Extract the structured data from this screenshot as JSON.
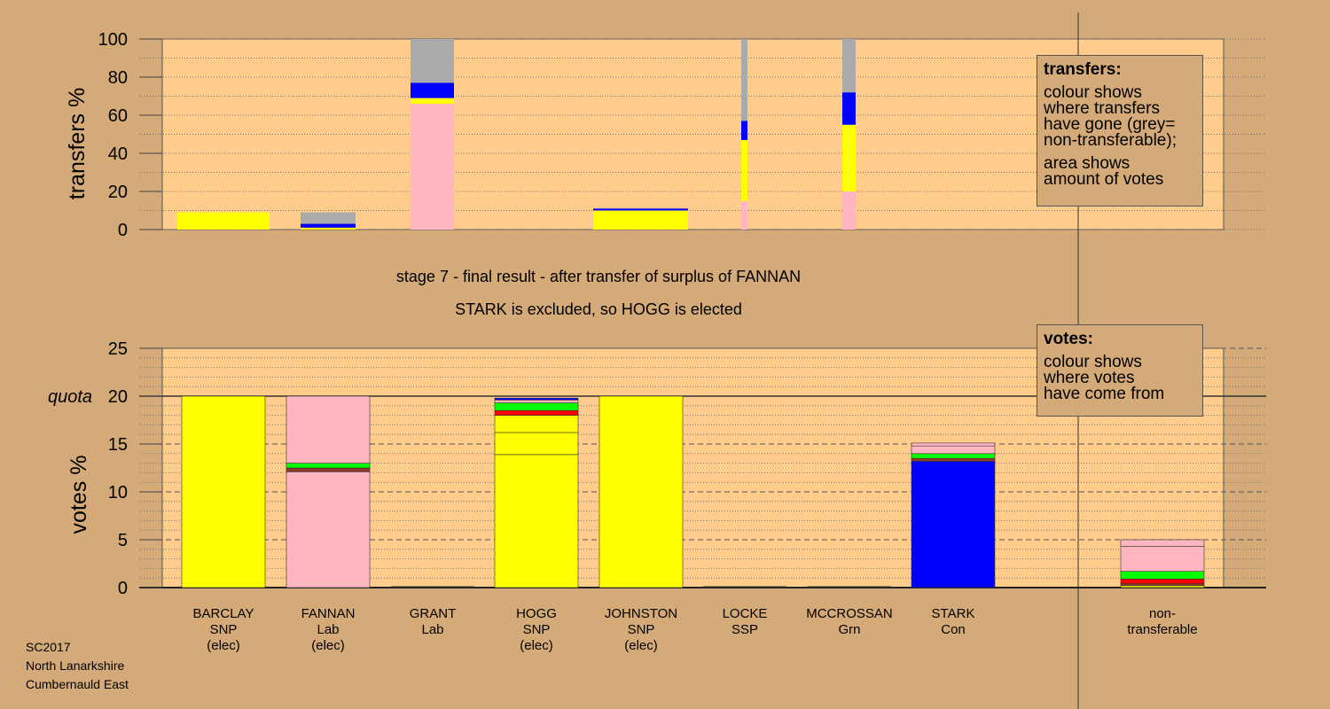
{
  "chart_data": [
    {
      "type": "bar",
      "stacked": true,
      "ylabel": "transfers %",
      "ylim": [
        0,
        100
      ],
      "yticks": [
        0,
        20,
        40,
        60,
        80,
        100
      ],
      "bars": [
        {
          "candidate": "BARCLAY",
          "segments": [
            {
              "color": "#ffff00",
              "value": 9
            }
          ]
        },
        {
          "candidate": "FANNAN",
          "segments": [
            {
              "color": "#ffff00",
              "value": 1
            },
            {
              "color": "#0000ff",
              "value": 2
            },
            {
              "color": "#aaaaaa",
              "value": 6
            }
          ]
        },
        {
          "candidate": "GRANT",
          "segments": [
            {
              "color": "#ffb6c1",
              "value": 66
            },
            {
              "color": "#ffff00",
              "value": 3
            },
            {
              "color": "#0000ff",
              "value": 8
            },
            {
              "color": "#aaaaaa",
              "value": 23
            }
          ]
        },
        {
          "candidate": "JOHNSTON",
          "segments": [
            {
              "color": "#ffff00",
              "value": 10
            },
            {
              "color": "#0000ff",
              "value": 1
            }
          ]
        },
        {
          "candidate": "LOCKE",
          "segments": [
            {
              "color": "#ffb6c1",
              "value": 15
            },
            {
              "color": "#ffff00",
              "value": 32
            },
            {
              "color": "#0000ff",
              "value": 10
            },
            {
              "color": "#aaaaaa",
              "value": 43
            }
          ]
        },
        {
          "candidate": "MCCROSSAN",
          "segments": [
            {
              "color": "#ffb6c1",
              "value": 20
            },
            {
              "color": "#ffff00",
              "value": 35
            },
            {
              "color": "#0000ff",
              "value": 17
            },
            {
              "color": "#aaaaaa",
              "value": 28
            }
          ]
        }
      ]
    },
    {
      "type": "bar",
      "stacked": true,
      "ylabel": "votes %",
      "ylim": [
        0,
        25
      ],
      "yticks": [
        0,
        5,
        10,
        15,
        20,
        25
      ],
      "quota_label": "quota",
      "quota": 20,
      "categories": [
        {
          "name": "BARCLAY",
          "party": "SNP",
          "status": "(elec)"
        },
        {
          "name": "FANNAN",
          "party": "Lab",
          "status": "(elec)"
        },
        {
          "name": "GRANT",
          "party": "Lab",
          "status": ""
        },
        {
          "name": "HOGG",
          "party": "SNP",
          "status": "(elec)"
        },
        {
          "name": "JOHNSTON",
          "party": "SNP",
          "status": "(elec)"
        },
        {
          "name": "LOCKE",
          "party": "SSP",
          "status": ""
        },
        {
          "name": "MCCROSSAN",
          "party": "Grn",
          "status": ""
        },
        {
          "name": "STARK",
          "party": "Con",
          "status": ""
        },
        {
          "name": "non-",
          "party": "transferable",
          "status": ""
        }
      ],
      "bars": [
        {
          "candidate": "BARCLAY",
          "segments": [
            {
              "color": "#ffff00",
              "value": 20
            }
          ]
        },
        {
          "candidate": "FANNAN",
          "segments": [
            {
              "color": "#ffb6c1",
              "value": 12.1
            },
            {
              "color": "#8b3a2b",
              "value": 0.4
            },
            {
              "color": "#00ff00",
              "value": 0.5
            },
            {
              "color": "#ffb6c1",
              "value": 7
            }
          ]
        },
        {
          "candidate": "GRANT",
          "segments": []
        },
        {
          "candidate": "HOGG",
          "segments": [
            {
              "color": "#ffff00",
              "value": 13.9
            },
            {
              "color": "#ffff00",
              "value": 2.3
            },
            {
              "color": "#ffff00",
              "value": 1.8
            },
            {
              "color": "#ff0000",
              "value": 0.5
            },
            {
              "color": "#00ff00",
              "value": 0.8
            },
            {
              "color": "#ffb6c1",
              "value": 0.3
            },
            {
              "color": "#0000ff",
              "value": 0.2
            }
          ]
        },
        {
          "candidate": "JOHNSTON",
          "segments": [
            {
              "color": "#ffff00",
              "value": 20
            }
          ]
        },
        {
          "candidate": "LOCKE",
          "segments": []
        },
        {
          "candidate": "MCCROSSAN",
          "segments": []
        },
        {
          "candidate": "STARK",
          "segments": [
            {
              "color": "#0000ff",
              "value": 13.2
            },
            {
              "color": "#8b3a2b",
              "value": 0.3
            },
            {
              "color": "#00ff00",
              "value": 0.5
            },
            {
              "color": "#ffb6c1",
              "value": 0.8
            },
            {
              "color": "#ffb6c1",
              "value": 0.3
            }
          ]
        },
        {
          "candidate": "non-transferable",
          "segments": [
            {
              "color": "#ffff00",
              "value": 0.2
            },
            {
              "color": "#8b3a2b",
              "value": 0.2
            },
            {
              "color": "#ff0000",
              "value": 0.5
            },
            {
              "color": "#00ff00",
              "value": 0.8
            },
            {
              "color": "#ffb6c1",
              "value": 2.6
            },
            {
              "color": "#ffb6c1",
              "value": 0.7
            }
          ]
        }
      ]
    }
  ],
  "legend_transfers": {
    "title": "transfers:",
    "line1": "colour shows",
    "line2": "where transfers",
    "line3": "have gone (grey=",
    "line4": "non-transferable);",
    "line5": "area shows",
    "line6": "amount of votes"
  },
  "legend_votes": {
    "title": "votes:",
    "line1": "colour shows",
    "line2": "where votes",
    "line3": "have come from"
  },
  "stage_text": "stage 7 - final result - after transfer of surplus of FANNAN",
  "result_text": "STARK is excluded, so HOGG is elected",
  "footer": {
    "line1": "SC2017",
    "line2": "North Lanarkshire",
    "line3": "Cumbernauld East"
  }
}
